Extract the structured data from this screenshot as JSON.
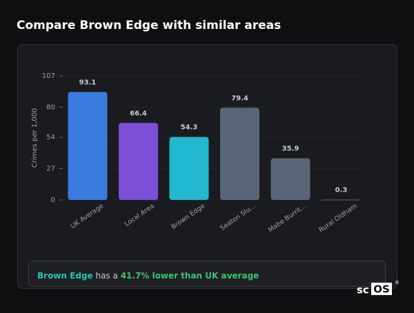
{
  "chart_data": {
    "type": "bar",
    "title": "Compare Brown Edge with similar areas",
    "y_label": "Crimes per 1,000",
    "categories": [
      "UK Average",
      "Local Area",
      "Brown Edge",
      "Seaton Slu...",
      "Mabe Burrit...",
      "Rural Oldham"
    ],
    "values": [
      93.1,
      66.4,
      54.3,
      79.4,
      35.9,
      0.3
    ],
    "colors": [
      "#3b7be0",
      "#7b4fd6",
      "#22b8cf",
      "#5a6577",
      "#5a6577",
      "#5a6577"
    ],
    "ylim": [
      0,
      107
    ],
    "yticks": [
      0,
      27,
      54,
      80,
      107
    ],
    "grid": true
  },
  "summary": {
    "area": "Brown Edge",
    "middle": "has a",
    "comparison": "41.7% lower than UK average"
  },
  "logo": {
    "prefix": "sc",
    "boxed": "OS",
    "mark": "®"
  }
}
